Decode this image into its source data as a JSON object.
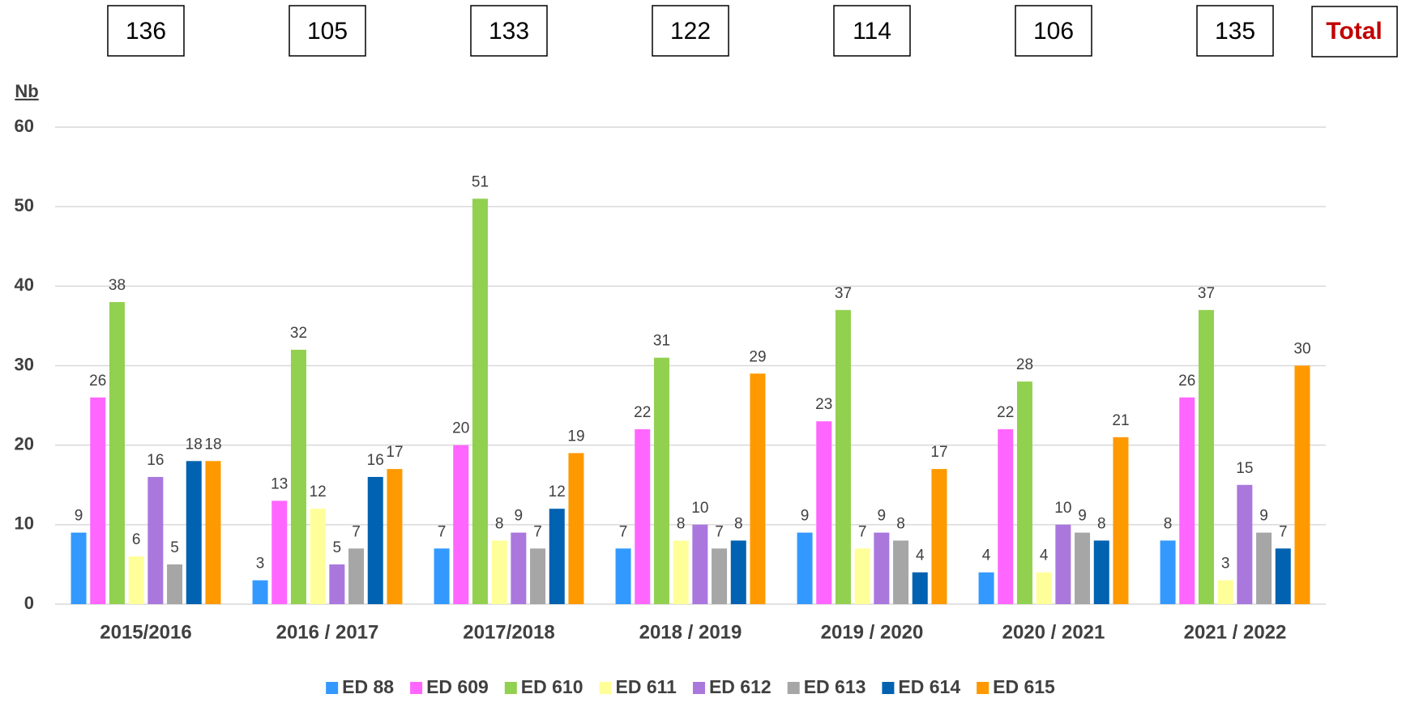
{
  "chart_data": {
    "type": "bar",
    "y_axis_label": "Nb",
    "categories": [
      "2015/2016",
      "2016 / 2017",
      "2017/2018",
      "2018 / 2019",
      "2019 / 2020",
      "2020 / 2021",
      "2021 / 2022"
    ],
    "totals": [
      136,
      105,
      133,
      122,
      114,
      106,
      135
    ],
    "totals_label": "Total",
    "series": [
      {
        "name": "ED 88",
        "color": "#3399ff",
        "values": [
          9,
          3,
          7,
          7,
          9,
          4,
          8
        ]
      },
      {
        "name": "ED 609",
        "color": "#ff66ff",
        "values": [
          26,
          13,
          20,
          22,
          23,
          22,
          26
        ]
      },
      {
        "name": "ED 610",
        "color": "#92d050",
        "values": [
          38,
          32,
          51,
          31,
          37,
          28,
          37
        ]
      },
      {
        "name": "ED 611",
        "color": "#ffff99",
        "values": [
          6,
          12,
          8,
          8,
          7,
          4,
          3
        ]
      },
      {
        "name": "ED 612",
        "color": "#aa77dd",
        "values": [
          16,
          5,
          9,
          10,
          9,
          10,
          15
        ]
      },
      {
        "name": "ED 613",
        "color": "#a6a6a6",
        "values": [
          5,
          7,
          7,
          7,
          8,
          9,
          9
        ]
      },
      {
        "name": "ED 614",
        "color": "#0062b0",
        "values": [
          18,
          16,
          12,
          8,
          4,
          8,
          7
        ]
      },
      {
        "name": "ED 615",
        "color": "#ff9900",
        "values": [
          18,
          17,
          19,
          29,
          17,
          21,
          30
        ]
      }
    ],
    "ylim": [
      0,
      60
    ],
    "yticks": [
      0,
      10,
      20,
      30,
      40,
      50,
      60
    ],
    "grid": true,
    "legend": "bottom"
  }
}
